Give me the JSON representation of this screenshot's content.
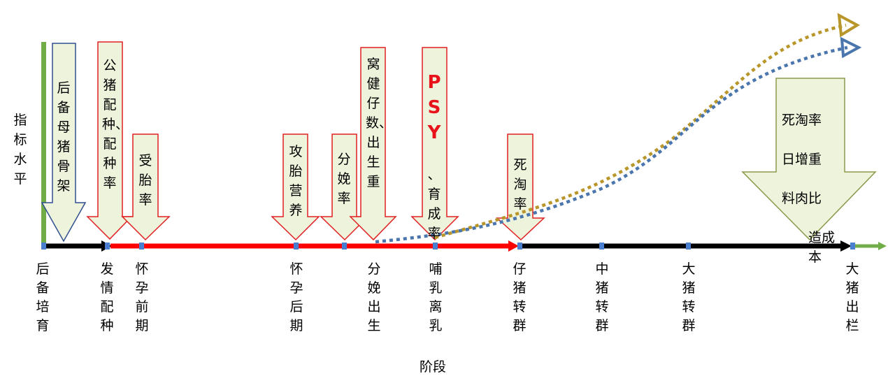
{
  "y_axis_label": "指标水平",
  "x_axis_label": "阶段",
  "stages": [
    {
      "label": "后备培育"
    },
    {
      "label": "发情配种"
    },
    {
      "label": "怀孕前期"
    },
    {
      "label": "怀孕后期"
    },
    {
      "label": "分娩出生"
    },
    {
      "label": "哺乳离乳"
    },
    {
      "label": "仔猪转群"
    },
    {
      "label": "中猪转群"
    },
    {
      "label": "大猪转群"
    },
    {
      "label": "大猪出栏"
    }
  ],
  "callouts": [
    {
      "text": "后备母猪骨架"
    },
    {
      "text": "公猪配种、配种率"
    },
    {
      "text": "受胎率"
    },
    {
      "text": "攻胎营养"
    },
    {
      "text": "分娩率"
    },
    {
      "text": "窝健仔数、出生重"
    },
    {
      "text_highlight": "PSY",
      "text": "、育成率"
    },
    {
      "text": "死淘率"
    },
    {
      "text_columns": [
        "死日料造",
        "淘增肉本",
        "率重比成",
        "成"
      ]
    }
  ],
  "big_callout": {
    "columns": [
      "死日料造",
      "淘增肉",
      "率重比成",
      "重比成本"
    ]
  },
  "colors": {
    "red_line": "#ff0000",
    "black_line": "#000000",
    "green_axis": "#70ad47",
    "blue_curve": "#4a76ad",
    "gold_curve": "#b8962a",
    "callout_fill": "#eef3dc",
    "red_outline": "#e02020",
    "blue_outline": "#2f4f8f",
    "olive_outline": "#8a9a4a"
  }
}
